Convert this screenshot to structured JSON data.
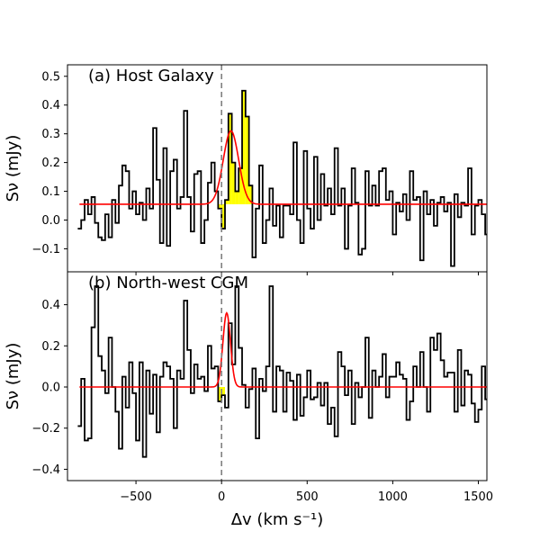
{
  "figure": {
    "xlabel": "Δv (km s⁻¹)",
    "ylabel": "Sν (mJy)",
    "xlim": [
      -900,
      1550
    ],
    "xticks": [
      -500,
      0,
      500,
      1000,
      1500
    ],
    "xtick_labels": [
      "−500",
      "0",
      "500",
      "1000",
      "1500"
    ],
    "zero_line_x": 0,
    "colors": {
      "spectrum": "#000000",
      "fit": "#ff0000",
      "highlight": "#ffff00",
      "zero_line": "#808080"
    }
  },
  "chart_data": [
    {
      "type": "line",
      "title": "(a) Host Galaxy",
      "ylim": [
        -0.18,
        0.54
      ],
      "yticks": [
        -0.1,
        0.0,
        0.1,
        0.2,
        0.3,
        0.4,
        0.5
      ],
      "ytick_labels": [
        "−0.1",
        "0.0",
        "0.1",
        "0.2",
        "0.3",
        "0.4",
        "0.5"
      ],
      "channel_width": 20,
      "x_start": -830,
      "values": [
        -0.03,
        0.0,
        0.07,
        0.02,
        0.08,
        -0.01,
        -0.06,
        -0.07,
        0.02,
        -0.06,
        0.07,
        -0.01,
        0.12,
        0.19,
        0.17,
        0.04,
        0.1,
        0.02,
        0.06,
        0.0,
        0.11,
        0.04,
        0.32,
        0.14,
        -0.08,
        0.25,
        -0.09,
        0.17,
        0.21,
        0.04,
        0.08,
        0.38,
        0.08,
        -0.04,
        0.16,
        0.17,
        -0.08,
        0.0,
        0.13,
        0.2,
        0.1,
        0.04,
        -0.03,
        0.07,
        0.37,
        0.2,
        0.1,
        0.18,
        0.45,
        0.36,
        0.12,
        -0.13,
        0.04,
        0.19,
        -0.08,
        0.0,
        0.11,
        -0.02,
        0.05,
        -0.06,
        0.05,
        0.05,
        0.02,
        0.27,
        0.0,
        -0.08,
        0.24,
        0.04,
        -0.03,
        0.22,
        0.0,
        0.16,
        0.05,
        0.11,
        0.02,
        0.25,
        0.05,
        0.11,
        -0.1,
        0.05,
        0.18,
        0.06,
        -0.12,
        -0.1,
        0.17,
        0.05,
        0.12,
        0.05,
        0.17,
        0.18,
        0.07,
        0.1,
        -0.05,
        0.06,
        0.03,
        0.09,
        0.0,
        0.17,
        0.07,
        0.08,
        -0.14,
        0.1,
        0.02,
        0.07,
        -0.02,
        0.06,
        0.08,
        0.03,
        0.06,
        -0.16,
        0.09,
        0.01,
        0.06,
        0.05,
        0.18,
        -0.05,
        0.05,
        0.07,
        0.02,
        -0.05,
        0.19,
        0.1,
        0.13,
        0.04,
        0.04,
        0.07,
        0.08,
        0.12,
        0.23,
        0.1,
        0.17,
        0.1,
        0.01,
        -0.01,
        -0.03,
        0.05,
        0.02,
        0.09,
        0.06,
        0.11,
        0.08,
        0.02
      ],
      "highlight_range": [
        -30,
        190
      ],
      "fit": {
        "baseline": 0.055,
        "amplitude": 0.255,
        "center": 55,
        "sigma": 45
      }
    },
    {
      "type": "line",
      "title": "(b) North-west CGM",
      "ylim": [
        -0.455,
        0.56
      ],
      "yticks": [
        -0.4,
        -0.2,
        0.0,
        0.2,
        0.4
      ],
      "ytick_labels": [
        "−0.4",
        "−0.2",
        "0.0",
        "0.2",
        "0.4"
      ],
      "channel_width": 20,
      "x_start": -830,
      "values": [
        -0.19,
        0.04,
        -0.26,
        -0.25,
        0.29,
        0.49,
        0.15,
        0.08,
        -0.03,
        0.24,
        0.0,
        -0.12,
        -0.3,
        0.05,
        -0.1,
        0.12,
        -0.03,
        -0.26,
        0.12,
        -0.34,
        0.08,
        -0.13,
        0.06,
        -0.22,
        0.05,
        0.12,
        0.1,
        0.04,
        -0.2,
        0.08,
        0.04,
        0.42,
        0.18,
        -0.03,
        0.11,
        0.04,
        0.05,
        -0.02,
        0.2,
        0.09,
        0.1,
        -0.07,
        -0.04,
        -0.1,
        0.31,
        0.11,
        0.49,
        0.19,
        0.01,
        -0.1,
        -0.01,
        0.09,
        -0.25,
        0.04,
        -0.02,
        0.1,
        0.49,
        -0.12,
        0.1,
        0.08,
        -0.12,
        0.07,
        0.03,
        -0.16,
        0.06,
        -0.14,
        -0.05,
        0.08,
        -0.06,
        -0.05,
        0.02,
        -0.09,
        0.02,
        -0.18,
        -0.1,
        -0.24,
        0.17,
        0.1,
        -0.04,
        0.08,
        -0.18,
        0.02,
        -0.05,
        0.0,
        0.24,
        -0.15,
        0.08,
        0.0,
        0.05,
        0.16,
        -0.05,
        0.05,
        0.05,
        0.12,
        0.06,
        0.04,
        -0.16,
        -0.07,
        0.1,
        0.0,
        0.17,
        0.0,
        -0.12,
        0.24,
        0.18,
        0.26,
        0.13,
        0.05,
        0.07,
        0.07,
        -0.12,
        0.18,
        -0.09,
        0.08,
        0.06,
        -0.08,
        -0.17,
        -0.11,
        0.1,
        -0.06,
        0.03,
        -0.21,
        -0.13,
        -0.19,
        0.05,
        -0.1,
        -0.25,
        -0.2,
        0.04,
        -0.13,
        0.14,
        -0.2,
        -0.38,
        0.04,
        0.09,
        -0.06,
        -0.01,
        -0.24,
        0.06,
        -0.3,
        0.02,
        -0.26,
        0.01
      ],
      "highlight_range": [
        -30,
        30
      ],
      "fit": {
        "baseline": 0.0,
        "amplitude": 0.36,
        "center": 30,
        "sigma": 22
      }
    }
  ]
}
